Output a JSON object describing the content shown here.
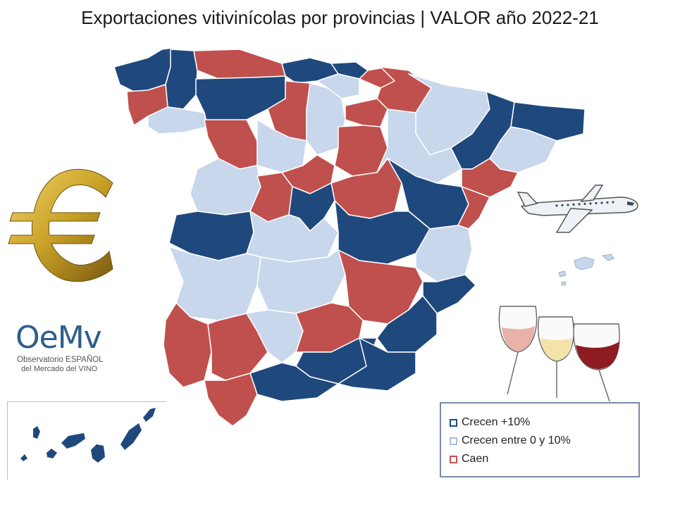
{
  "title": "Exportaciones vitivinícolas por provincias | VALOR año 2022-21",
  "logo": {
    "acronym": "OeMv",
    "line1": "Observatorio ESPAÑOL",
    "line2": "del Mercado del VINO"
  },
  "legend": {
    "items": [
      {
        "label": "Crecen +10%",
        "color": "#1f497d"
      },
      {
        "label": "Crecen entre 0 y 10%",
        "color": "#c5d5ea"
      },
      {
        "label": "Caen",
        "color": "#c0504d"
      }
    ]
  },
  "colors": {
    "dark_blue": "#1f497d",
    "light_blue": "#c8d7eb",
    "red": "#c0504d",
    "gold": "#c9a227"
  },
  "icons": [
    "euro-icon",
    "airplane-icon",
    "wine-glasses-icon"
  ]
}
